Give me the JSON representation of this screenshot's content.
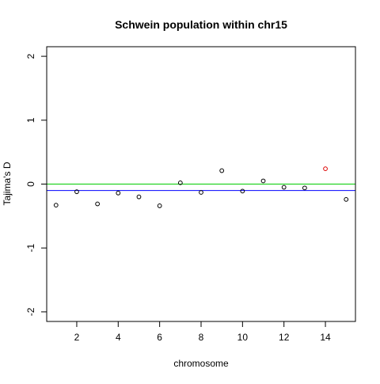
{
  "chart_data": {
    "type": "scatter",
    "title": "Schwein population within chr15",
    "xlabel": "chromosome",
    "ylabel": "Tajima's D",
    "xlim": [
      0.55,
      15.45
    ],
    "ylim": [
      -2.15,
      2.15
    ],
    "xticks": [
      2,
      4,
      6,
      8,
      10,
      12,
      14
    ],
    "yticks": [
      -2,
      -1,
      0,
      1,
      2
    ],
    "grid": false,
    "reference_lines": [
      {
        "y": 0,
        "color": "#00cc00"
      },
      {
        "y": -0.1,
        "color": "#0000ff"
      }
    ],
    "points": [
      {
        "x": 1,
        "y": -0.33,
        "color": "#000000"
      },
      {
        "x": 2,
        "y": -0.12,
        "color": "#000000"
      },
      {
        "x": 3,
        "y": -0.31,
        "color": "#000000"
      },
      {
        "x": 4,
        "y": -0.14,
        "color": "#000000"
      },
      {
        "x": 5,
        "y": -0.2,
        "color": "#000000"
      },
      {
        "x": 6,
        "y": -0.34,
        "color": "#000000"
      },
      {
        "x": 7,
        "y": 0.02,
        "color": "#000000"
      },
      {
        "x": 8,
        "y": -0.13,
        "color": "#000000"
      },
      {
        "x": 9,
        "y": 0.21,
        "color": "#000000"
      },
      {
        "x": 10,
        "y": -0.11,
        "color": "#000000"
      },
      {
        "x": 11,
        "y": 0.05,
        "color": "#000000"
      },
      {
        "x": 12,
        "y": -0.05,
        "color": "#000000"
      },
      {
        "x": 13,
        "y": -0.06,
        "color": "#000000"
      },
      {
        "x": 14,
        "y": 0.24,
        "color": "#dd0000"
      },
      {
        "x": 15,
        "y": -0.24,
        "color": "#000000"
      }
    ]
  }
}
